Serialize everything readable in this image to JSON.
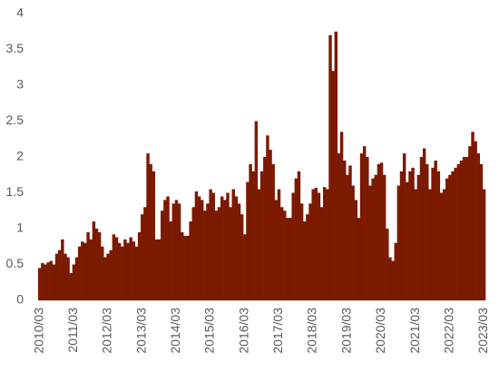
{
  "chart_data": {
    "type": "bar",
    "categories": [
      "2010/03",
      null,
      null,
      null,
      null,
      null,
      null,
      null,
      null,
      null,
      null,
      null,
      "2011/03",
      null,
      null,
      null,
      null,
      null,
      null,
      null,
      null,
      null,
      null,
      null,
      "2012/03",
      null,
      null,
      null,
      null,
      null,
      null,
      null,
      null,
      null,
      null,
      null,
      "2013/03",
      null,
      null,
      null,
      null,
      null,
      null,
      null,
      null,
      null,
      null,
      null,
      "2014/03",
      null,
      null,
      null,
      null,
      null,
      null,
      null,
      null,
      null,
      null,
      null,
      "2015/03",
      null,
      null,
      null,
      null,
      null,
      null,
      null,
      null,
      null,
      null,
      null,
      "2016/03",
      null,
      null,
      null,
      null,
      null,
      null,
      null,
      null,
      null,
      null,
      null,
      "2017/03",
      null,
      null,
      null,
      null,
      null,
      null,
      null,
      null,
      null,
      null,
      null,
      "2018/03",
      null,
      null,
      null,
      null,
      null,
      null,
      null,
      null,
      null,
      null,
      null,
      "2019/03",
      null,
      null,
      null,
      null,
      null,
      null,
      null,
      null,
      null,
      null,
      null,
      "2020/03",
      null,
      null,
      null,
      null,
      null,
      null,
      null,
      null,
      null,
      null,
      null,
      "2021/03",
      null,
      null,
      null,
      null,
      null,
      null,
      null,
      null,
      null,
      null,
      null,
      "2022/03",
      null,
      null,
      null,
      null,
      null,
      null,
      null,
      null,
      null,
      null,
      null,
      "2023/03"
    ],
    "values": [
      0.45,
      0.52,
      0.5,
      0.53,
      0.55,
      0.5,
      0.65,
      0.7,
      0.85,
      0.65,
      0.6,
      0.38,
      0.5,
      0.6,
      0.75,
      0.82,
      0.8,
      0.95,
      0.85,
      1.1,
      1.0,
      0.95,
      0.75,
      0.6,
      0.65,
      0.7,
      0.92,
      0.88,
      0.8,
      0.75,
      0.85,
      0.8,
      0.88,
      0.82,
      0.75,
      0.95,
      1.2,
      1.3,
      2.05,
      1.9,
      1.8,
      0.85,
      0.85,
      1.25,
      1.4,
      1.45,
      1.1,
      1.35,
      1.4,
      1.35,
      0.95,
      0.9,
      0.9,
      1.1,
      1.3,
      1.52,
      1.45,
      1.4,
      1.25,
      1.35,
      1.55,
      1.5,
      1.25,
      1.3,
      1.45,
      1.4,
      1.5,
      1.3,
      1.55,
      1.45,
      1.35,
      1.2,
      0.92,
      1.65,
      1.9,
      1.8,
      2.5,
      1.55,
      1.8,
      2.0,
      2.3,
      2.1,
      1.9,
      1.4,
      1.55,
      1.3,
      1.25,
      1.15,
      1.15,
      1.5,
      1.7,
      1.8,
      1.35,
      1.1,
      1.2,
      1.35,
      1.55,
      1.57,
      1.5,
      1.3,
      1.58,
      1.55,
      3.7,
      3.2,
      3.75,
      2.05,
      2.35,
      1.95,
      1.75,
      1.88,
      1.6,
      1.4,
      1.15,
      2.05,
      2.15,
      2.0,
      1.6,
      1.7,
      1.75,
      1.9,
      1.92,
      1.75,
      1.0,
      0.6,
      0.55,
      0.8,
      1.6,
      1.8,
      2.05,
      1.65,
      1.8,
      1.85,
      1.55,
      1.75,
      2.0,
      2.12,
      1.9,
      1.55,
      1.85,
      1.95,
      1.8,
      1.5,
      1.55,
      1.7,
      1.75,
      1.8,
      1.85,
      1.9,
      1.95,
      2.0,
      2.0,
      2.15,
      2.35,
      2.22,
      2.05,
      1.9,
      1.55
    ],
    "color": "#7b1a00",
    "ylim": [
      0,
      4
    ],
    "yticks": [
      0,
      0.5,
      1,
      1.5,
      2,
      2.5,
      3,
      3.5,
      4
    ],
    "grid": false
  }
}
